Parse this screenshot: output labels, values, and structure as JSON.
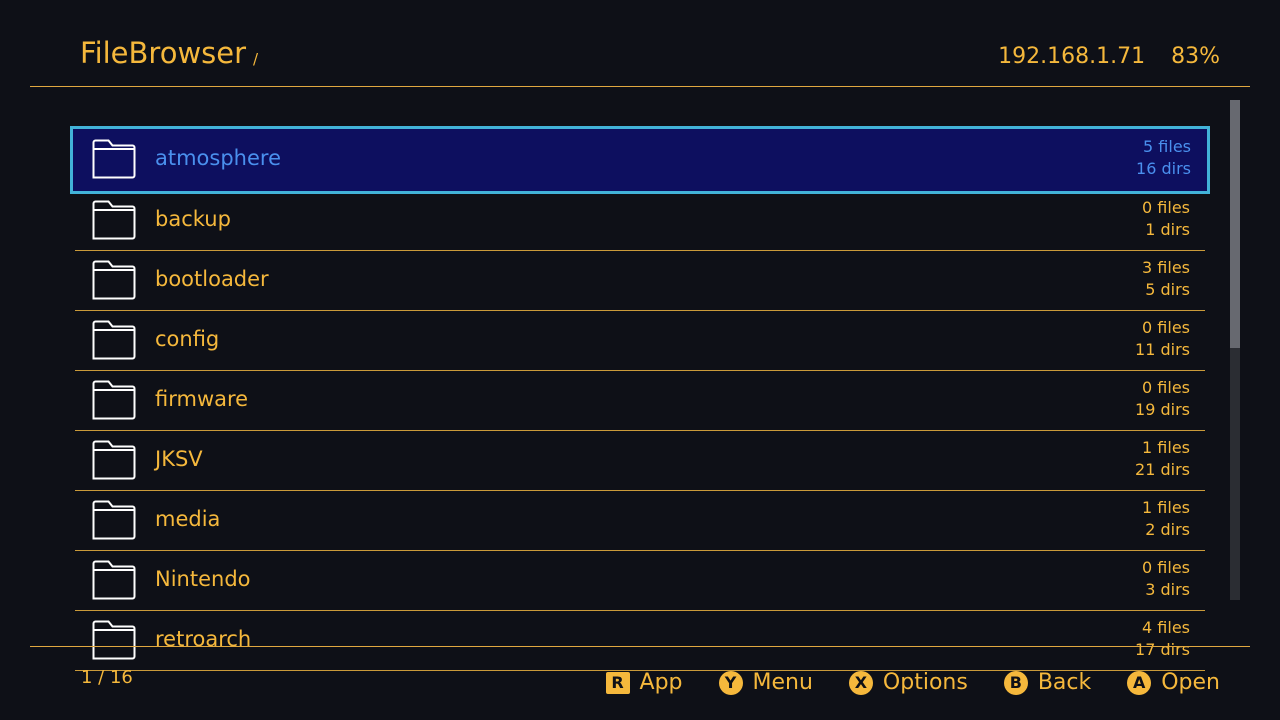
{
  "header": {
    "title": "FileBrowser",
    "path": "/",
    "ip": "192.168.1.71",
    "battery": "83%"
  },
  "list": {
    "selected_index": 0,
    "items": [
      {
        "name": "atmosphere",
        "files": "5 files",
        "dirs": "16 dirs"
      },
      {
        "name": "backup",
        "files": "0 files",
        "dirs": "1 dirs"
      },
      {
        "name": "bootloader",
        "files": "3 files",
        "dirs": "5 dirs"
      },
      {
        "name": "config",
        "files": "0 files",
        "dirs": "11 dirs"
      },
      {
        "name": "firmware",
        "files": "0 files",
        "dirs": "19 dirs"
      },
      {
        "name": "JKSV",
        "files": "1 files",
        "dirs": "21 dirs"
      },
      {
        "name": "media",
        "files": "1 files",
        "dirs": "2 dirs"
      },
      {
        "name": "Nintendo",
        "files": "0 files",
        "dirs": "3 dirs"
      },
      {
        "name": "retroarch",
        "files": "4 files",
        "dirs": "17 dirs"
      }
    ]
  },
  "scrollbar": {
    "visible_fraction": 0.5,
    "position": 0
  },
  "footer": {
    "pager": "1 / 16",
    "hints": [
      {
        "key": "R",
        "label": "App",
        "icon": "r-button-icon"
      },
      {
        "key": "Y",
        "label": "Menu",
        "icon": "y-button-icon"
      },
      {
        "key": "X",
        "label": "Options",
        "icon": "x-button-icon"
      },
      {
        "key": "B",
        "label": "Back",
        "icon": "b-button-icon"
      },
      {
        "key": "A",
        "label": "Open",
        "icon": "a-button-icon"
      }
    ]
  },
  "colors": {
    "accent": "#f5b83c",
    "selection_bg": "#0d0f5f",
    "selection_border": "#42b3d9",
    "selection_text": "#4a90ee",
    "background": "#0e1017"
  }
}
